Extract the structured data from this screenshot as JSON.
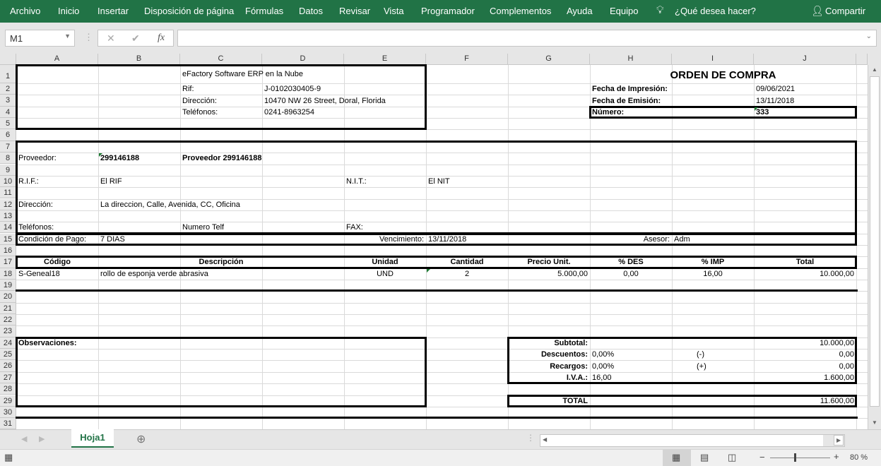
{
  "menu": [
    "Archivo",
    "Inicio",
    "Insertar",
    "Disposición de página",
    "Fórmulas",
    "Datos",
    "Revisar",
    "Vista",
    "Programador",
    "Complementos",
    "Ayuda",
    "Equipo"
  ],
  "tell_me": "¿Qué desea hacer?",
  "share": "Compartir",
  "name_box": "M1",
  "formula_value": "",
  "columns": [
    "A",
    "B",
    "C",
    "D",
    "E",
    "F",
    "G",
    "H",
    "I",
    "J"
  ],
  "rows": 31,
  "cells": [
    {
      "r": 1,
      "c": 2,
      "v": "eFactory Software ERP en la Nube"
    },
    {
      "r": 1,
      "c": 7,
      "s": 3,
      "a": "center",
      "b": true,
      "big": true,
      "v": "ORDEN DE COMPRA"
    },
    {
      "r": 2,
      "c": 2,
      "v": "Rif:"
    },
    {
      "r": 2,
      "c": 3,
      "v": "J-0102030405-9"
    },
    {
      "r": 2,
      "c": 7,
      "b": true,
      "v": "Fecha de Impresión:"
    },
    {
      "r": 2,
      "c": 9,
      "v": "09/06/2021"
    },
    {
      "r": 3,
      "c": 2,
      "v": "Dirección:"
    },
    {
      "r": 3,
      "c": 3,
      "v": "10470 NW 26 Street, Doral, Florida"
    },
    {
      "r": 3,
      "c": 7,
      "b": true,
      "v": "Fecha de Emisión:"
    },
    {
      "r": 3,
      "c": 9,
      "v": "13/11/2018"
    },
    {
      "r": 4,
      "c": 2,
      "v": "Teléfonos:"
    },
    {
      "r": 4,
      "c": 3,
      "v": "0241-8963254"
    },
    {
      "r": 4,
      "c": 7,
      "b": true,
      "v": "Número:"
    },
    {
      "r": 4,
      "c": 9,
      "b": true,
      "v": "333"
    },
    {
      "r": 8,
      "c": 0,
      "v": "Proveedor:"
    },
    {
      "r": 8,
      "c": 1,
      "b": true,
      "v": "299146188"
    },
    {
      "r": 8,
      "c": 2,
      "b": true,
      "v": "Proveedor 299146188"
    },
    {
      "r": 10,
      "c": 0,
      "v": "R.I.F.:"
    },
    {
      "r": 10,
      "c": 1,
      "v": "El RIF"
    },
    {
      "r": 10,
      "c": 4,
      "v": "N.I.T.:"
    },
    {
      "r": 10,
      "c": 5,
      "v": "El NIT"
    },
    {
      "r": 12,
      "c": 0,
      "v": "Dirección:"
    },
    {
      "r": 12,
      "c": 1,
      "v": "La direccion, Calle, Avenida, CC, Oficina"
    },
    {
      "r": 14,
      "c": 0,
      "v": "Teléfonos:"
    },
    {
      "r": 14,
      "c": 2,
      "v": "Numero Telf"
    },
    {
      "r": 14,
      "c": 4,
      "v": "FAX:"
    },
    {
      "r": 15,
      "c": 0,
      "v": "Condición de Pago:"
    },
    {
      "r": 15,
      "c": 1,
      "v": "7 DIAS"
    },
    {
      "r": 15,
      "c": 4,
      "a": "right",
      "v": "Vencimiento:"
    },
    {
      "r": 15,
      "c": 5,
      "v": "13/11/2018"
    },
    {
      "r": 15,
      "c": 7,
      "a": "right",
      "v": "Asesor:"
    },
    {
      "r": 15,
      "c": 8,
      "v": "Adm"
    },
    {
      "r": 17,
      "c": 0,
      "a": "center",
      "b": true,
      "v": "Código"
    },
    {
      "r": 17,
      "c": 1,
      "s": 3,
      "a": "center",
      "b": true,
      "v": "Descripción"
    },
    {
      "r": 17,
      "c": 4,
      "a": "center",
      "b": true,
      "v": "Unidad"
    },
    {
      "r": 17,
      "c": 5,
      "a": "center",
      "b": true,
      "v": "Cantidad"
    },
    {
      "r": 17,
      "c": 6,
      "a": "center",
      "b": true,
      "v": "Precio Unit."
    },
    {
      "r": 17,
      "c": 7,
      "a": "center",
      "b": true,
      "v": "% DES"
    },
    {
      "r": 17,
      "c": 8,
      "a": "center",
      "b": true,
      "v": "% IMP"
    },
    {
      "r": 17,
      "c": 9,
      "a": "center",
      "b": true,
      "v": "Total"
    },
    {
      "r": 18,
      "c": 0,
      "v": "S-Geneal18"
    },
    {
      "r": 18,
      "c": 1,
      "v": "rollo de esponja verde abrasiva"
    },
    {
      "r": 18,
      "c": 4,
      "a": "center",
      "v": "UND"
    },
    {
      "r": 18,
      "c": 5,
      "a": "center",
      "v": "2"
    },
    {
      "r": 18,
      "c": 6,
      "a": "right",
      "v": "5.000,00"
    },
    {
      "r": 18,
      "c": 7,
      "a": "center",
      "v": "0,00"
    },
    {
      "r": 18,
      "c": 8,
      "a": "center",
      "v": "16,00"
    },
    {
      "r": 18,
      "c": 9,
      "a": "right",
      "v": "10.000,00"
    },
    {
      "r": 24,
      "c": 0,
      "b": true,
      "v": "Observaciones:"
    },
    {
      "r": 24,
      "c": 6,
      "a": "right",
      "b": true,
      "v": "Subtotal:"
    },
    {
      "r": 24,
      "c": 9,
      "a": "right",
      "v": "10.000,00"
    },
    {
      "r": 25,
      "c": 6,
      "a": "right",
      "b": true,
      "v": "Descuentos:"
    },
    {
      "r": 25,
      "c": 7,
      "v": "0,00%"
    },
    {
      "r": 25,
      "c": 8,
      "v": "(-)",
      "ind": true
    },
    {
      "r": 25,
      "c": 9,
      "a": "right",
      "v": "0,00"
    },
    {
      "r": 26,
      "c": 6,
      "a": "right",
      "b": true,
      "v": "Recargos:"
    },
    {
      "r": 26,
      "c": 7,
      "v": "0,00%"
    },
    {
      "r": 26,
      "c": 8,
      "v": "(+)",
      "ind": true
    },
    {
      "r": 26,
      "c": 9,
      "a": "right",
      "v": "0,00"
    },
    {
      "r": 27,
      "c": 6,
      "a": "right",
      "b": true,
      "v": "I.V.A.:"
    },
    {
      "r": 27,
      "c": 7,
      "v": "16,00"
    },
    {
      "r": 27,
      "c": 9,
      "a": "right",
      "v": "1.600,00"
    },
    {
      "r": 29,
      "c": 6,
      "a": "right",
      "b": true,
      "v": "TOTAL"
    },
    {
      "r": 29,
      "c": 9,
      "a": "right",
      "v": "11.600,00"
    }
  ],
  "sheet_tab": "Hoja1",
  "zoom": "80 %",
  "zoom_level": 80
}
